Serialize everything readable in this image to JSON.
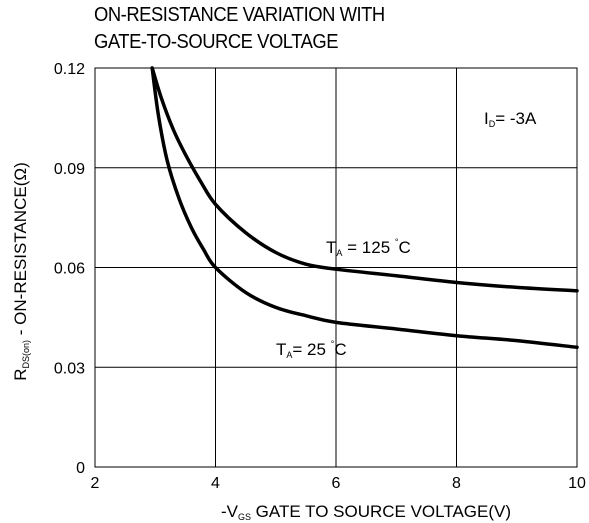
{
  "chart_data": {
    "type": "line",
    "title_lines": [
      "ON-RESISTANCE VARIATION WITH",
      "GATE-TO-SOURCE VOLTAGE"
    ],
    "xlabel": {
      "prefix": "-V",
      "sub": "GS",
      "text": " GATE TO SOURCE VOLTAGE(V)"
    },
    "ylabel": {
      "prefix": "R",
      "sub": "DS(on)",
      "text": "  - ON-RESISTANCE(Ω)"
    },
    "xlim": [
      2,
      10
    ],
    "ylim": [
      0,
      0.12
    ],
    "xticks": [
      2,
      4,
      6,
      8,
      10
    ],
    "xtick_labels": [
      "2",
      "4",
      "6",
      "8",
      "10"
    ],
    "yticks": [
      0,
      0.03,
      0.06,
      0.09,
      0.12
    ],
    "ytick_labels": [
      "0",
      "0.03",
      "0.06",
      "0.09",
      "0.12"
    ],
    "grid": true,
    "annotation_id": {
      "prefix": "I",
      "sub": "D",
      "text": "= -3A"
    },
    "series": [
      {
        "name": "T_A = 125 °C",
        "label": {
          "prefix": "T",
          "sub": "A",
          "mid": " = 125 ",
          "deg": "°",
          "unit": "C"
        },
        "x": [
          2.95,
          3.1,
          3.3,
          3.5,
          3.75,
          4.0,
          4.5,
          5.0,
          5.5,
          6.0,
          7.0,
          8.0,
          9.0,
          10.0
        ],
        "y": [
          0.12,
          0.111,
          0.1015,
          0.094,
          0.086,
          0.079,
          0.0705,
          0.0645,
          0.061,
          0.0595,
          0.0575,
          0.0555,
          0.054,
          0.053
        ]
      },
      {
        "name": "T_A = 25 °C",
        "label": {
          "prefix": "T",
          "sub": "A",
          "mid": "= 25 ",
          "deg": "°",
          "unit": "C"
        },
        "x": [
          2.95,
          3.05,
          3.2,
          3.4,
          3.6,
          3.8,
          4.0,
          4.5,
          5.0,
          5.5,
          6.0,
          7.0,
          8.0,
          9.0,
          10.0
        ],
        "y": [
          0.12,
          0.106,
          0.092,
          0.0805,
          0.072,
          0.0655,
          0.06,
          0.0525,
          0.048,
          0.0455,
          0.0435,
          0.0415,
          0.0395,
          0.038,
          0.036
        ]
      }
    ]
  }
}
